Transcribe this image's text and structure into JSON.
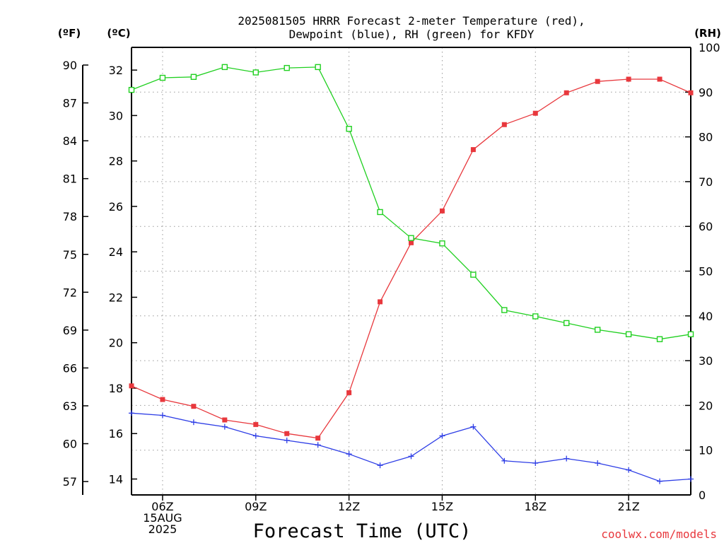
{
  "chart_data": {
    "type": "line",
    "title_line1": "2025081505 HRRR Forecast 2-meter Temperature (red),",
    "title_line2": "Dewpoint (blue), RH (green) for KFDY",
    "xlabel": "Forecast Time (UTC)",
    "credit": "coolwx.com/models",
    "axis_units": {
      "fahrenheit": "(ºF)",
      "celsius": "(ºC)",
      "rh": "(RH)"
    },
    "x": [
      5,
      6,
      7,
      8,
      9,
      10,
      11,
      12,
      13,
      14,
      15,
      16,
      17,
      18,
      19,
      20,
      21,
      22,
      23
    ],
    "x_ticks": [
      {
        "hour": 6,
        "lines": [
          "06Z",
          "15AUG",
          "2025"
        ]
      },
      {
        "hour": 9,
        "lines": [
          "09Z"
        ]
      },
      {
        "hour": 12,
        "lines": [
          "12Z"
        ]
      },
      {
        "hour": 15,
        "lines": [
          "15Z"
        ]
      },
      {
        "hour": 18,
        "lines": [
          "18Z"
        ]
      },
      {
        "hour": 21,
        "lines": [
          "21Z"
        ]
      }
    ],
    "xlim": [
      5,
      23
    ],
    "ylim_celsius": [
      13.3,
      33
    ],
    "ylim_rh": [
      0,
      100
    ],
    "celsius_ticks": [
      "14",
      "16",
      "18",
      "20",
      "22",
      "24",
      "26",
      "28",
      "30",
      "32"
    ],
    "fahrenheit_ticks": [
      "57",
      "60",
      "63",
      "66",
      "69",
      "72",
      "75",
      "78",
      "81",
      "84",
      "87",
      "90"
    ],
    "rh_ticks": [
      "0",
      "10",
      "20",
      "30",
      "40",
      "50",
      "60",
      "70",
      "80",
      "90",
      "100"
    ],
    "grid": true,
    "series": [
      {
        "key": "temperature",
        "axis": "celsius",
        "color": "#e8383d",
        "marker": "filled-square",
        "values": [
          18.1,
          17.5,
          17.2,
          16.6,
          16.4,
          16.0,
          15.8,
          17.8,
          21.8,
          24.4,
          25.8,
          28.5,
          29.6,
          30.1,
          31.0,
          31.5,
          31.6,
          31.6,
          31.0
        ]
      },
      {
        "key": "dewpoint",
        "axis": "celsius",
        "color": "#2e3ee6",
        "marker": "plus",
        "values": [
          16.9,
          16.8,
          16.5,
          16.3,
          15.9,
          15.7,
          15.5,
          15.1,
          14.6,
          15.0,
          15.9,
          16.3,
          14.8,
          14.7,
          14.9,
          14.7,
          14.4,
          13.9,
          14.0
        ]
      },
      {
        "key": "rh",
        "axis": "rh",
        "color": "#20d020",
        "marker": "open-square",
        "values": [
          90.5,
          93.2,
          93.4,
          95.6,
          94.4,
          95.4,
          95.6,
          81.8,
          63.2,
          57.4,
          56.2,
          49.2,
          41.3,
          39.9,
          38.4,
          36.9,
          35.9,
          34.8,
          35.9
        ]
      }
    ]
  }
}
